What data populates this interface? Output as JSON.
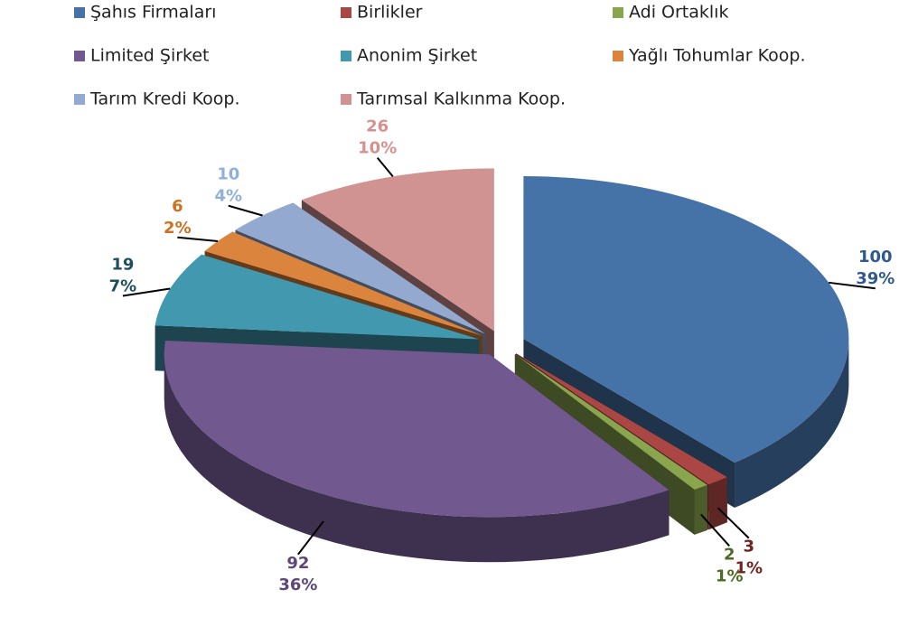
{
  "chart_data": {
    "type": "pie3d",
    "categories": [
      "Şahıs Firmaları",
      "Birlikler",
      "Adi Ortaklık",
      "Limited Şirket",
      "Anonim Şirket",
      "Yağlı Tohumlar Koop.",
      "Tarım Kredi Koop.",
      "Tarımsal Kalkınma Koop."
    ],
    "values": [
      100,
      3,
      2,
      92,
      19,
      6,
      10,
      26
    ],
    "percent_labels": [
      "39%",
      "1%",
      "1%",
      "36%",
      "7%",
      "2%",
      "4%",
      "10%"
    ],
    "colors": [
      "#4572a7",
      "#aa4643",
      "#89a54e",
      "#71588f",
      "#4198af",
      "#db843d",
      "#93a9cf",
      "#d19392"
    ],
    "label_colors": [
      "#2f5a8e",
      "#6e2421",
      "#4f6a24",
      "#5d4678",
      "#1f4f5e",
      "#d06f1e",
      "#8fb0d8",
      "#d8908e"
    ],
    "legend": "top"
  }
}
